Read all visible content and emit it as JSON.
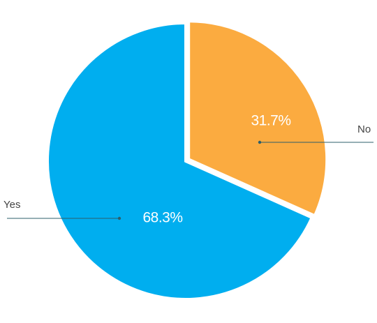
{
  "chart_data": {
    "type": "pie",
    "categories": [
      "No",
      "Yes"
    ],
    "values": [
      31.7,
      68.3
    ],
    "value_labels": [
      "31.7%",
      "68.3%"
    ],
    "colors": [
      "#fbab40",
      "#00aeef"
    ]
  }
}
